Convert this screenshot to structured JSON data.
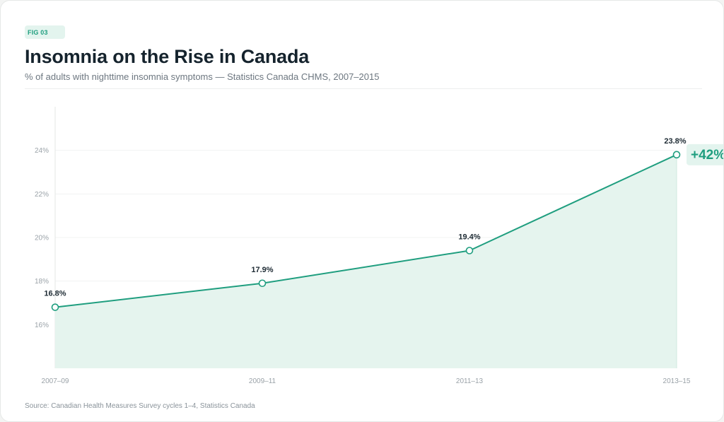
{
  "figure": {
    "tag": "FIG 03",
    "title": "Insomnia on the Rise in Canada",
    "subtitle": "% of adults with nighttime insomnia symptoms — Statistics Canada CHMS, 2007–2015",
    "source": "Source: Canadian Health Measures Survey cycles 1–4, Statistics Canada"
  },
  "colors": {
    "line": "#1f9e7f",
    "area": "#e5f4ee",
    "annotation_bg": "#e3f4ee"
  },
  "chart_data": {
    "type": "area",
    "categories": [
      "2007–09",
      "2009–11",
      "2011–13",
      "2013–15"
    ],
    "values": [
      16.8,
      17.9,
      19.4,
      23.8
    ],
    "data_labels": [
      "16.8%",
      "17.9%",
      "19.4%",
      "23.8%"
    ],
    "yticks": [
      16,
      18,
      20,
      22,
      24
    ],
    "ytick_labels": [
      "16%",
      "18%",
      "20%",
      "22%",
      "24%"
    ],
    "ylim": [
      14,
      26
    ],
    "grid": true,
    "annotation": "+42%",
    "xlabel": "",
    "ylabel": ""
  }
}
